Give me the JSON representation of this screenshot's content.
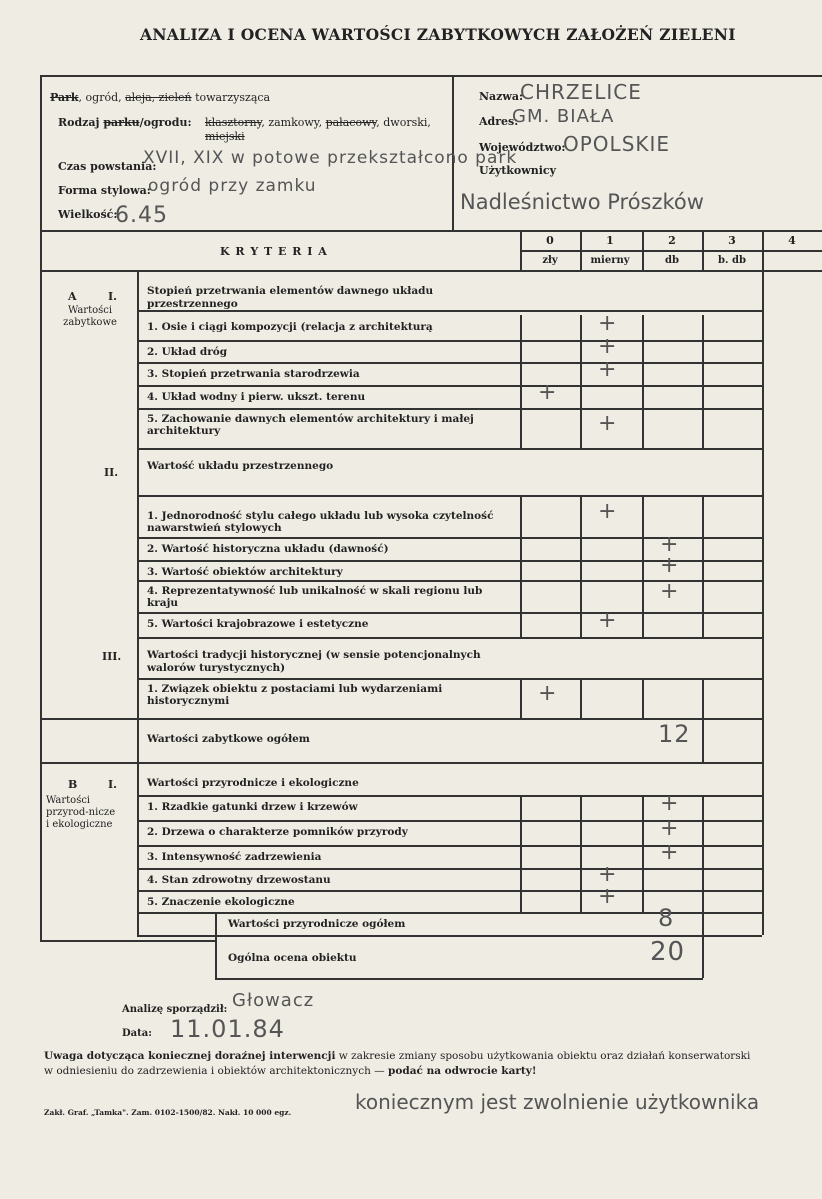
{
  "title": "ANALIZA I OCENA WARTOŚCI ZABYTKOWYCH ZAŁOŻEŃ ZIELENI",
  "info": {
    "type_line": {
      "park": "Park",
      "rest1": ", ogród, ",
      "aleja": "aleja, zieleń",
      "rest2": " towarzysząca"
    },
    "rodzaj_label": "Rodzaj ",
    "parku": "parku",
    "rodzaj_rest": "/ogrodu:",
    "rodzaj_options": {
      "klasztorny": "klasztorny",
      "zamkowy": ", zamkowy, ",
      "palacowy": "pałacowy",
      "dworski": ", dworski,",
      "miejski": "miejski"
    },
    "czas_label": "Czas powstania:",
    "czas_value": "XVII, XIX w potowe przekształcono park",
    "forma_label": "Forma stylowa:",
    "forma_value": "ogród przy zamku",
    "wielkosc_label": "Wielkość:",
    "wielkosc_value": "6.45",
    "nazwa_label": "Nazwa:",
    "nazwa_value": "CHRZELICE",
    "adres_label": "Adres:",
    "adres_value": "GM. BIAŁA",
    "woj_label": "Województwo:",
    "woj_value": "OPOLSKIE",
    "uzyt_label": "Użytkownicy",
    "uzyt_value": "Nadleśnictwo Prószków"
  },
  "header": {
    "kryteria": "K R Y T E R I A",
    "scores": [
      "0",
      "1",
      "2",
      "3",
      "4"
    ],
    "grades": [
      "zły",
      "mierny",
      "db",
      "b. db",
      ""
    ]
  },
  "sectionA": {
    "letter": "A",
    "roman": "I.",
    "name": "Wartości zabytkowe",
    "II": "II.",
    "III": "III."
  },
  "sectionB": {
    "letter": "B",
    "roman": "I.",
    "name": "Wartości przyrod-nicze i ekologiczne"
  },
  "rows": [
    {
      "kind": "head",
      "text": "Stopień przetrwania elementów dawnego układu przestrzennego"
    },
    {
      "kind": "item",
      "text": "1. Osie i ciągi kompozycji (relacja z architekturą",
      "mark": 1
    },
    {
      "kind": "item",
      "text": "2. Układ dróg",
      "mark": 1
    },
    {
      "kind": "item",
      "text": "3. Stopień przetrwania starodrzewia",
      "mark": 1
    },
    {
      "kind": "item",
      "text": "4. Układ wodny i pierw. ukszt. terenu",
      "mark": 0
    },
    {
      "kind": "item",
      "text": "5. Zachowanie dawnych elementów architektury i małej architektury",
      "mark": 1
    },
    {
      "kind": "head",
      "text": "Wartość układu przestrzennego"
    },
    {
      "kind": "item",
      "text": "1. Jednorodność stylu całego układu lub wysoka czytelność nawarstwień stylowych",
      "mark": 1
    },
    {
      "kind": "item",
      "text": "2. Wartość historyczna układu (dawność)",
      "mark": 2
    },
    {
      "kind": "item",
      "text": "3. Wartość obiektów architektury",
      "mark": 2
    },
    {
      "kind": "item",
      "text": "4. Reprezentatywność lub unikalność w skali regionu lub kraju",
      "mark": 2
    },
    {
      "kind": "item",
      "text": "5. Wartości krajobrazowe i estetyczne",
      "mark": 1
    },
    {
      "kind": "head",
      "text": "Wartości tradycji historycznej (w sensie potencjonalnych walorów turystycznych)"
    },
    {
      "kind": "item",
      "text": "1. Związek obiektu z postaciami lub wydarzeniami historycznymi",
      "mark": 0
    },
    {
      "kind": "total",
      "text": "Wartości zabytkowe ogółem",
      "value": "12"
    },
    {
      "kind": "head",
      "text": "Wartości przyrodnicze i ekologiczne"
    },
    {
      "kind": "item",
      "text": "1. Rzadkie gatunki drzew i krzewów",
      "mark": 2
    },
    {
      "kind": "item",
      "text": "2. Drzewa o charakterze pomników przyrody",
      "mark": 2
    },
    {
      "kind": "item",
      "text": "3. Intensywność zadrzewienia",
      "mark": 2
    },
    {
      "kind": "item",
      "text": "4. Stan zdrowotny drzewostanu",
      "mark": 1
    },
    {
      "kind": "item",
      "text": "5. Znaczenie ekologiczne",
      "mark": 1
    },
    {
      "kind": "total2",
      "text": "Wartości przyrodnicze ogółem",
      "value": "8"
    }
  ],
  "mark_symbol": "+",
  "overall": {
    "label": "Ogólna ocena obiektu",
    "value": "20"
  },
  "footer": {
    "analiza_label": "Analizę sporządził:",
    "analiza_sig": "Głowacz",
    "data_label": "Data:",
    "data_value": "11.01.84",
    "uwaga_bold": "Uwaga dotycząca koniecznej doraźnej interwencji",
    "uwaga_text": " w zakresie zmiany sposobu użytkowania obiektu oraz działań konserwatorski",
    "uwaga_line2": "w odniesieniu do zadrzewienia i obiektów architektonicznych — ",
    "uwaga_line2_bold": "podać na odwrocie karty!",
    "printer": "Zakł. Graf. „Tamka\". Zam. 0102-1500/82. Nakł. 10 000 egz.",
    "note_hand": "koniecznym jest zwolnienie użytkownika"
  }
}
